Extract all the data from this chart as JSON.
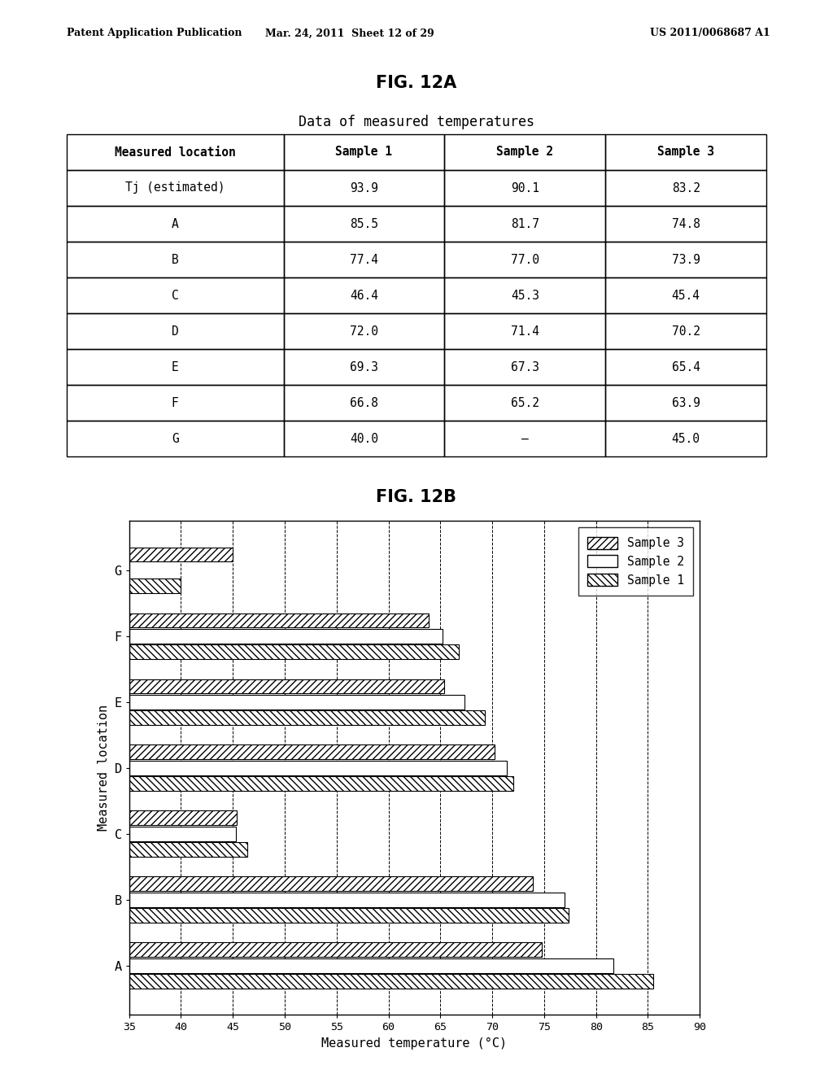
{
  "header_text_left": "Patent Application Publication",
  "header_text_mid": "Mar. 24, 2011  Sheet 12 of 29",
  "header_text_right": "US 2011/0068687 A1",
  "fig12a_title": "FIG. 12A",
  "table_title": "Data of measured temperatures",
  "table_col_headers": [
    "Measured location",
    "Sample 1",
    "Sample 2",
    "Sample 3"
  ],
  "table_rows": [
    [
      "Tj (estimated)",
      "93.9",
      "90.1",
      "83.2"
    ],
    [
      "A",
      "85.5",
      "81.7",
      "74.8"
    ],
    [
      "B",
      "77.4",
      "77.0",
      "73.9"
    ],
    [
      "C",
      "46.4",
      "45.3",
      "45.4"
    ],
    [
      "D",
      "72.0",
      "71.4",
      "70.2"
    ],
    [
      "E",
      "69.3",
      "67.3",
      "65.4"
    ],
    [
      "F",
      "66.8",
      "65.2",
      "63.9"
    ],
    [
      "G",
      "40.0",
      "–",
      "45.0"
    ]
  ],
  "fig12b_title": "FIG. 12B",
  "bar_categories": [
    "A",
    "B",
    "C",
    "D",
    "E",
    "F",
    "G"
  ],
  "sample1_values": [
    85.5,
    77.4,
    46.4,
    72.0,
    69.3,
    66.8,
    40.0
  ],
  "sample2_values": [
    81.7,
    77.0,
    45.3,
    71.4,
    67.3,
    65.2,
    null
  ],
  "sample3_values": [
    74.8,
    73.9,
    45.4,
    70.2,
    65.4,
    63.9,
    45.0
  ],
  "xlabel": "Measured temperature (°C)",
  "ylabel": "Measured location",
  "xlim": [
    35,
    90
  ],
  "xticks": [
    35,
    40,
    45,
    50,
    55,
    60,
    65,
    70,
    75,
    80,
    85,
    90
  ],
  "background_color": "#ffffff"
}
